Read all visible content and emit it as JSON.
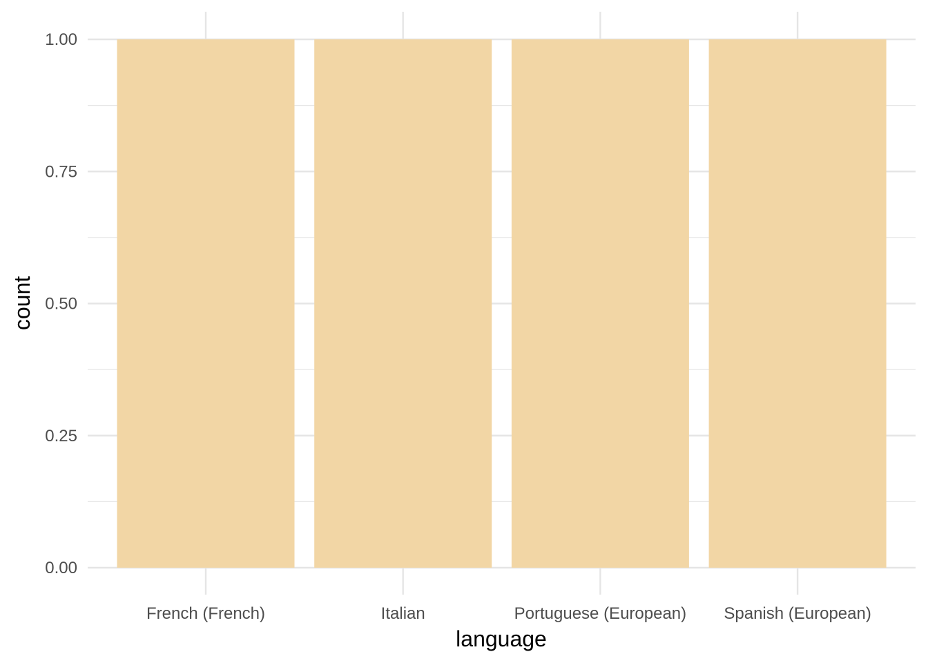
{
  "chart_data": {
    "type": "bar",
    "categories": [
      "French (French)",
      "Italian",
      "Portuguese (European)",
      "Spanish (European)"
    ],
    "values": [
      1,
      1,
      1,
      1
    ],
    "xlabel": "language",
    "ylabel": "count",
    "ylim": [
      0,
      1.05
    ],
    "yticks": [
      0,
      0.25,
      0.5,
      0.75,
      1
    ],
    "ytick_labels": [
      "0.00",
      "0.25",
      "0.50",
      "0.75",
      "1.00"
    ],
    "grid": true,
    "bar_color": "#f2d6a5",
    "grid_color": "#e5e5e5",
    "background": "#ffffff"
  }
}
